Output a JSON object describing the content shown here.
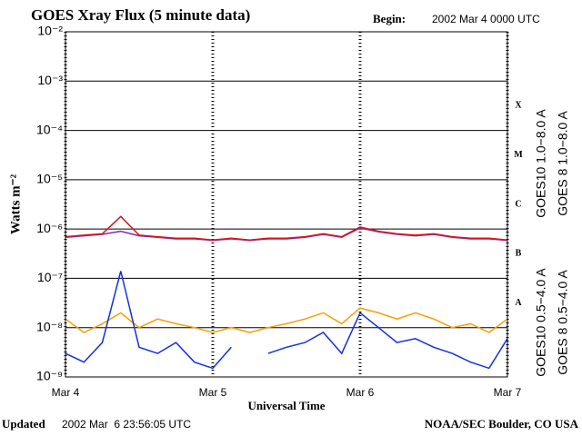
{
  "chart_data": {
    "type": "line",
    "title": "GOES Xray Flux (5 minute data)",
    "begin_label": "Begin:",
    "begin": "2002 Mar 4 0000 UTC",
    "ylabel": "Watts m⁻²",
    "xlabel": "Universal Time",
    "updated_label": "Updated",
    "updated": "2002 Mar  6 23:56:05 UTC",
    "source": "NOAA/SEC Boulder, CO USA",
    "log_scale": true,
    "grid": true,
    "xlim": [
      0,
      72
    ],
    "xticks": [
      {
        "value": 0,
        "label": "Mar 4"
      },
      {
        "value": 24,
        "label": "Mar 5"
      },
      {
        "value": 48,
        "label": "Mar 6"
      },
      {
        "value": 72,
        "label": "Mar 7"
      }
    ],
    "ylim": [
      1e-09,
      0.01
    ],
    "yticks": [
      {
        "value": 1e-09,
        "label": "10⁻⁹"
      },
      {
        "value": 1e-08,
        "label": "10⁻⁸"
      },
      {
        "value": 1e-07,
        "label": "10⁻⁷"
      },
      {
        "value": 1e-06,
        "label": "10⁻⁶"
      },
      {
        "value": 1e-05,
        "label": "10⁻⁵"
      },
      {
        "value": 0.0001,
        "label": "10⁻⁴"
      },
      {
        "value": 0.001,
        "label": "10⁻³"
      },
      {
        "value": 0.01,
        "label": "10⁻²"
      }
    ],
    "class_ticks": [
      {
        "value": 1e-08,
        "label": "A"
      },
      {
        "value": 1e-07,
        "label": "B"
      },
      {
        "value": 1e-06,
        "label": "C"
      },
      {
        "value": 1e-05,
        "label": "M"
      },
      {
        "value": 0.0001,
        "label": "X"
      }
    ],
    "x": [
      0,
      3,
      6,
      9,
      12,
      15,
      18,
      21,
      24,
      27,
      30,
      33,
      36,
      39,
      42,
      45,
      48,
      51,
      54,
      57,
      60,
      63,
      66,
      69,
      72
    ],
    "series": [
      {
        "name": "GOES10 1.0−8.0 A",
        "color": "#7b2fa8",
        "values": [
          6.8e-07,
          7.3e-07,
          7.8e-07,
          9e-07,
          7.3e-07,
          6.8e-07,
          6.3e-07,
          6.3e-07,
          5.9e-07,
          6.3e-07,
          5.9e-07,
          6.3e-07,
          6.3e-07,
          6.8e-07,
          7.8e-07,
          6.8e-07,
          1.05e-06,
          8.8e-07,
          7.8e-07,
          7.3e-07,
          7.8e-07,
          6.8e-07,
          6.3e-07,
          6.3e-07,
          5.9e-07
        ]
      },
      {
        "name": "GOES 8 1.0−8.0 A",
        "color": "#e0101a",
        "values": [
          7e-07,
          7.5e-07,
          8e-07,
          1.8e-06,
          7.5e-07,
          7e-07,
          6.5e-07,
          6.5e-07,
          6e-07,
          6.5e-07,
          6e-07,
          6.5e-07,
          6.5e-07,
          7e-07,
          8e-07,
          7e-07,
          1.1e-06,
          9e-07,
          8e-07,
          7.5e-07,
          8e-07,
          7e-07,
          6.5e-07,
          6.5e-07,
          6e-07
        ]
      },
      {
        "name": "GOES10 0.5−4.0 A",
        "color": "#f5a000",
        "values": [
          1.5e-08,
          8e-09,
          1.2e-08,
          2e-08,
          1e-08,
          1.5e-08,
          1.2e-08,
          1e-08,
          8e-09,
          1e-08,
          8e-09,
          1e-08,
          1.2e-08,
          1.5e-08,
          2e-08,
          1.2e-08,
          2.5e-08,
          2e-08,
          1.5e-08,
          2e-08,
          1.5e-08,
          1e-08,
          1.2e-08,
          8e-09,
          1.5e-08
        ]
      },
      {
        "name": "GOES 8 0.5−4.0 A",
        "color": "#1030e0",
        "values": [
          3e-09,
          2e-09,
          5e-09,
          1.4e-07,
          4e-09,
          3e-09,
          5e-09,
          2e-09,
          1.5e-09,
          4e-09,
          null,
          3e-09,
          4e-09,
          5e-09,
          8e-09,
          3e-09,
          2e-08,
          1e-08,
          5e-09,
          6e-09,
          4e-09,
          3e-09,
          2e-09,
          1.5e-09,
          6e-09
        ]
      }
    ]
  }
}
